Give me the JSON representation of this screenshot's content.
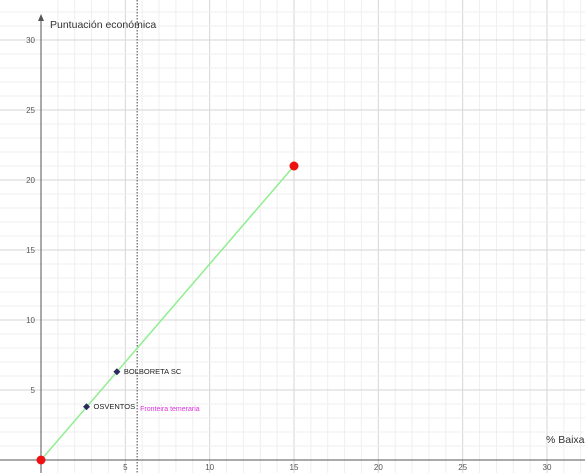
{
  "chart_data": {
    "type": "scatter",
    "x_label": "% Baixa",
    "y_label": "Puntuación económica",
    "xlim": [
      0,
      32
    ],
    "ylim": [
      0,
      31
    ],
    "x_ticks": [
      5,
      10,
      15,
      20,
      25,
      30
    ],
    "y_ticks": [
      5,
      10,
      15,
      20,
      25,
      30
    ],
    "grid": true,
    "line": {
      "from": [
        0,
        0
      ],
      "to": [
        15,
        21
      ],
      "color": "#90ee90"
    },
    "endpoints": [
      {
        "x": 0,
        "y": 0
      },
      {
        "x": 15,
        "y": 21
      }
    ],
    "endpoint_color": "#ee1111",
    "points": [
      {
        "label": "BOLBORETA SC",
        "x": 4.5,
        "y": 6.3
      },
      {
        "label": "OSVENTOS",
        "x": 2.7,
        "y": 3.8
      }
    ],
    "point_color": "#2a2a5e",
    "reference_line": {
      "x": 5.7,
      "label": "Fronteira temeraria",
      "color": "#dd33dd"
    }
  }
}
